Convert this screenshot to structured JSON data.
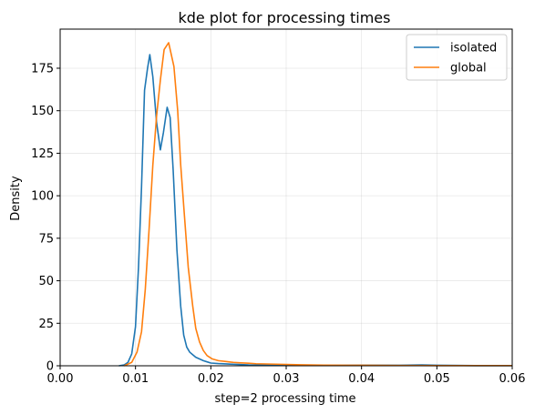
{
  "chart_data": {
    "type": "line",
    "title": "kde plot for processing times",
    "xlabel": "step=2 processing time",
    "ylabel": "Density",
    "xlim": [
      0.0,
      0.06
    ],
    "ylim": [
      0,
      198
    ],
    "xticks": [
      0.0,
      0.01,
      0.02,
      0.03,
      0.04,
      0.05,
      0.06
    ],
    "xtick_labels": [
      "0.00",
      "0.01",
      "0.02",
      "0.03",
      "0.04",
      "0.05",
      "0.06"
    ],
    "yticks": [
      0,
      25,
      50,
      75,
      100,
      125,
      150,
      175
    ],
    "ytick_labels": [
      "0",
      "25",
      "50",
      "75",
      "100",
      "125",
      "150",
      "175"
    ],
    "grid": true,
    "legend_position": "top-right",
    "series": [
      {
        "name": "isolated",
        "color": "#1f77b4",
        "x": [
          0.0078,
          0.0085,
          0.009,
          0.0095,
          0.01,
          0.0104,
          0.0108,
          0.0112,
          0.0116,
          0.0119,
          0.0123,
          0.0128,
          0.0133,
          0.0137,
          0.0142,
          0.0146,
          0.015,
          0.0155,
          0.016,
          0.0164,
          0.0168,
          0.0172,
          0.0176,
          0.018,
          0.0185,
          0.019,
          0.0195,
          0.02,
          0.021,
          0.022,
          0.023,
          0.024,
          0.025,
          0.027,
          0.029,
          0.031,
          0.033,
          0.035,
          0.04,
          0.045,
          0.048,
          0.05,
          0.055,
          0.06
        ],
        "y": [
          0,
          0.5,
          2,
          7,
          23,
          58,
          105,
          162,
          175,
          183,
          170,
          143,
          127,
          137,
          152,
          146,
          115,
          68,
          35,
          18,
          11,
          8,
          6.5,
          5,
          4,
          3,
          2.3,
          1.6,
          1.3,
          1.1,
          0.9,
          0.7,
          0.5,
          0.4,
          0.3,
          0.2,
          0.2,
          0.2,
          0.4,
          0.3,
          0.5,
          0.3,
          0.1,
          0.1
        ]
      },
      {
        "name": "global",
        "color": "#ff7f0e",
        "x": [
          0.0085,
          0.0095,
          0.0102,
          0.0108,
          0.0113,
          0.0118,
          0.0123,
          0.0128,
          0.0133,
          0.0138,
          0.0144,
          0.0151,
          0.0156,
          0.016,
          0.0165,
          0.017,
          0.0176,
          0.018,
          0.0185,
          0.019,
          0.0195,
          0.0202,
          0.021,
          0.022,
          0.023,
          0.024,
          0.025,
          0.026,
          0.028,
          0.03,
          0.032,
          0.033,
          0.035,
          0.04,
          0.045,
          0.05,
          0.055,
          0.06
        ],
        "y": [
          0,
          2,
          8,
          20,
          45,
          80,
          118,
          147,
          168,
          186,
          190,
          176,
          150,
          118,
          88,
          58,
          35,
          22,
          14,
          9,
          6,
          4,
          3,
          2.5,
          2,
          1.7,
          1.5,
          1.2,
          1,
          0.8,
          0.6,
          0.5,
          0.4,
          0.3,
          0.2,
          0.1,
          0.1,
          0.1
        ]
      }
    ]
  }
}
